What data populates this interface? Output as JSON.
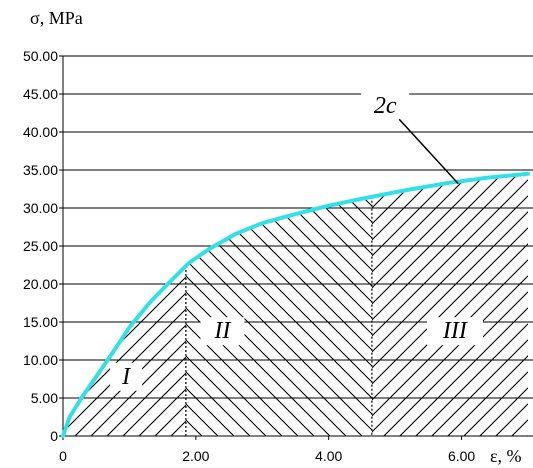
{
  "chart_data": {
    "type": "line",
    "title": "",
    "ylabel": "σ, MPa",
    "xlabel": "ε, %",
    "xlim": [
      0,
      7.2
    ],
    "ylim": [
      0,
      50
    ],
    "grid": "horizontal",
    "y_ticks": [
      "0",
      "5.00",
      "10.00",
      "15.00",
      "20.00",
      "25.00",
      "30.00",
      "35.00",
      "40.00",
      "45.00",
      "50.00"
    ],
    "x_ticks": [
      "0",
      "2.00",
      "4.00",
      "6.00"
    ],
    "curve_color": "#33e0e8",
    "series": [
      {
        "name": "2c",
        "x": [
          0,
          0.1,
          0.3,
          0.5,
          0.75,
          1.0,
          1.3,
          1.6,
          1.9,
          2.2,
          2.6,
          3.0,
          3.5,
          4.0,
          4.6,
          5.2,
          5.8,
          6.4,
          7.0
        ],
        "y": [
          0,
          2.5,
          5.3,
          7.8,
          11.0,
          14.3,
          17.5,
          20.2,
          22.8,
          24.6,
          26.6,
          28.0,
          29.2,
          30.3,
          31.4,
          32.4,
          33.3,
          34.0,
          34.5
        ]
      }
    ],
    "boundaries": [
      {
        "x": 1.85
      },
      {
        "x": 4.65
      }
    ],
    "regions": [
      {
        "label": "I",
        "x": 0.95,
        "y": 7
      },
      {
        "label": "II",
        "x": 2.4,
        "y": 13
      },
      {
        "label": "III",
        "x": 5.9,
        "y": 13
      }
    ],
    "annotations": [
      {
        "text": "2c",
        "x": 4.85,
        "y": 43,
        "point_x": 5.95,
        "point_y": 33.2
      }
    ]
  }
}
